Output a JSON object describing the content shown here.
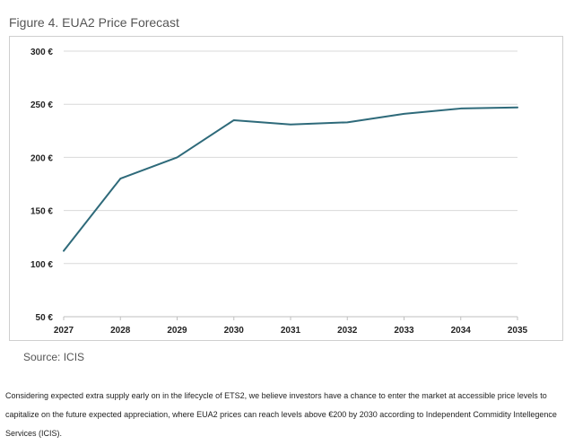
{
  "figure_title": "Figure 4. EUA2 Price Forecast",
  "source": "Source: ICIS",
  "paragraph": "Considering expected extra supply early on in the lifecycle of ETS2, we believe investors have a chance to enter the market at accessible price levels to capitalize on the future expected appreciation, where EUA2 prices can reach levels above €200 by 2030 according to Independent Commidity Intellegence Services (ICIS).",
  "chart_data": {
    "type": "line",
    "title": "",
    "xlabel": "",
    "ylabel": "",
    "x": [
      "2027",
      "2028",
      "2029",
      "2030",
      "2031",
      "2032",
      "2033",
      "2034",
      "2035"
    ],
    "series": [
      {
        "values": [
          112,
          180,
          200,
          235,
          231,
          233,
          241,
          246,
          247
        ]
      }
    ],
    "ylim": [
      50,
      300
    ],
    "yticks": [
      50,
      100,
      150,
      200,
      250,
      300
    ],
    "ytick_labels": [
      "50 €",
      "100 €",
      "150 €",
      "200 €",
      "250 €",
      "300 €"
    ],
    "grid": {
      "horizontal": true,
      "vertical": false
    },
    "line_color": "#2e6a7a",
    "grid_color": "#d9d9d9"
  }
}
